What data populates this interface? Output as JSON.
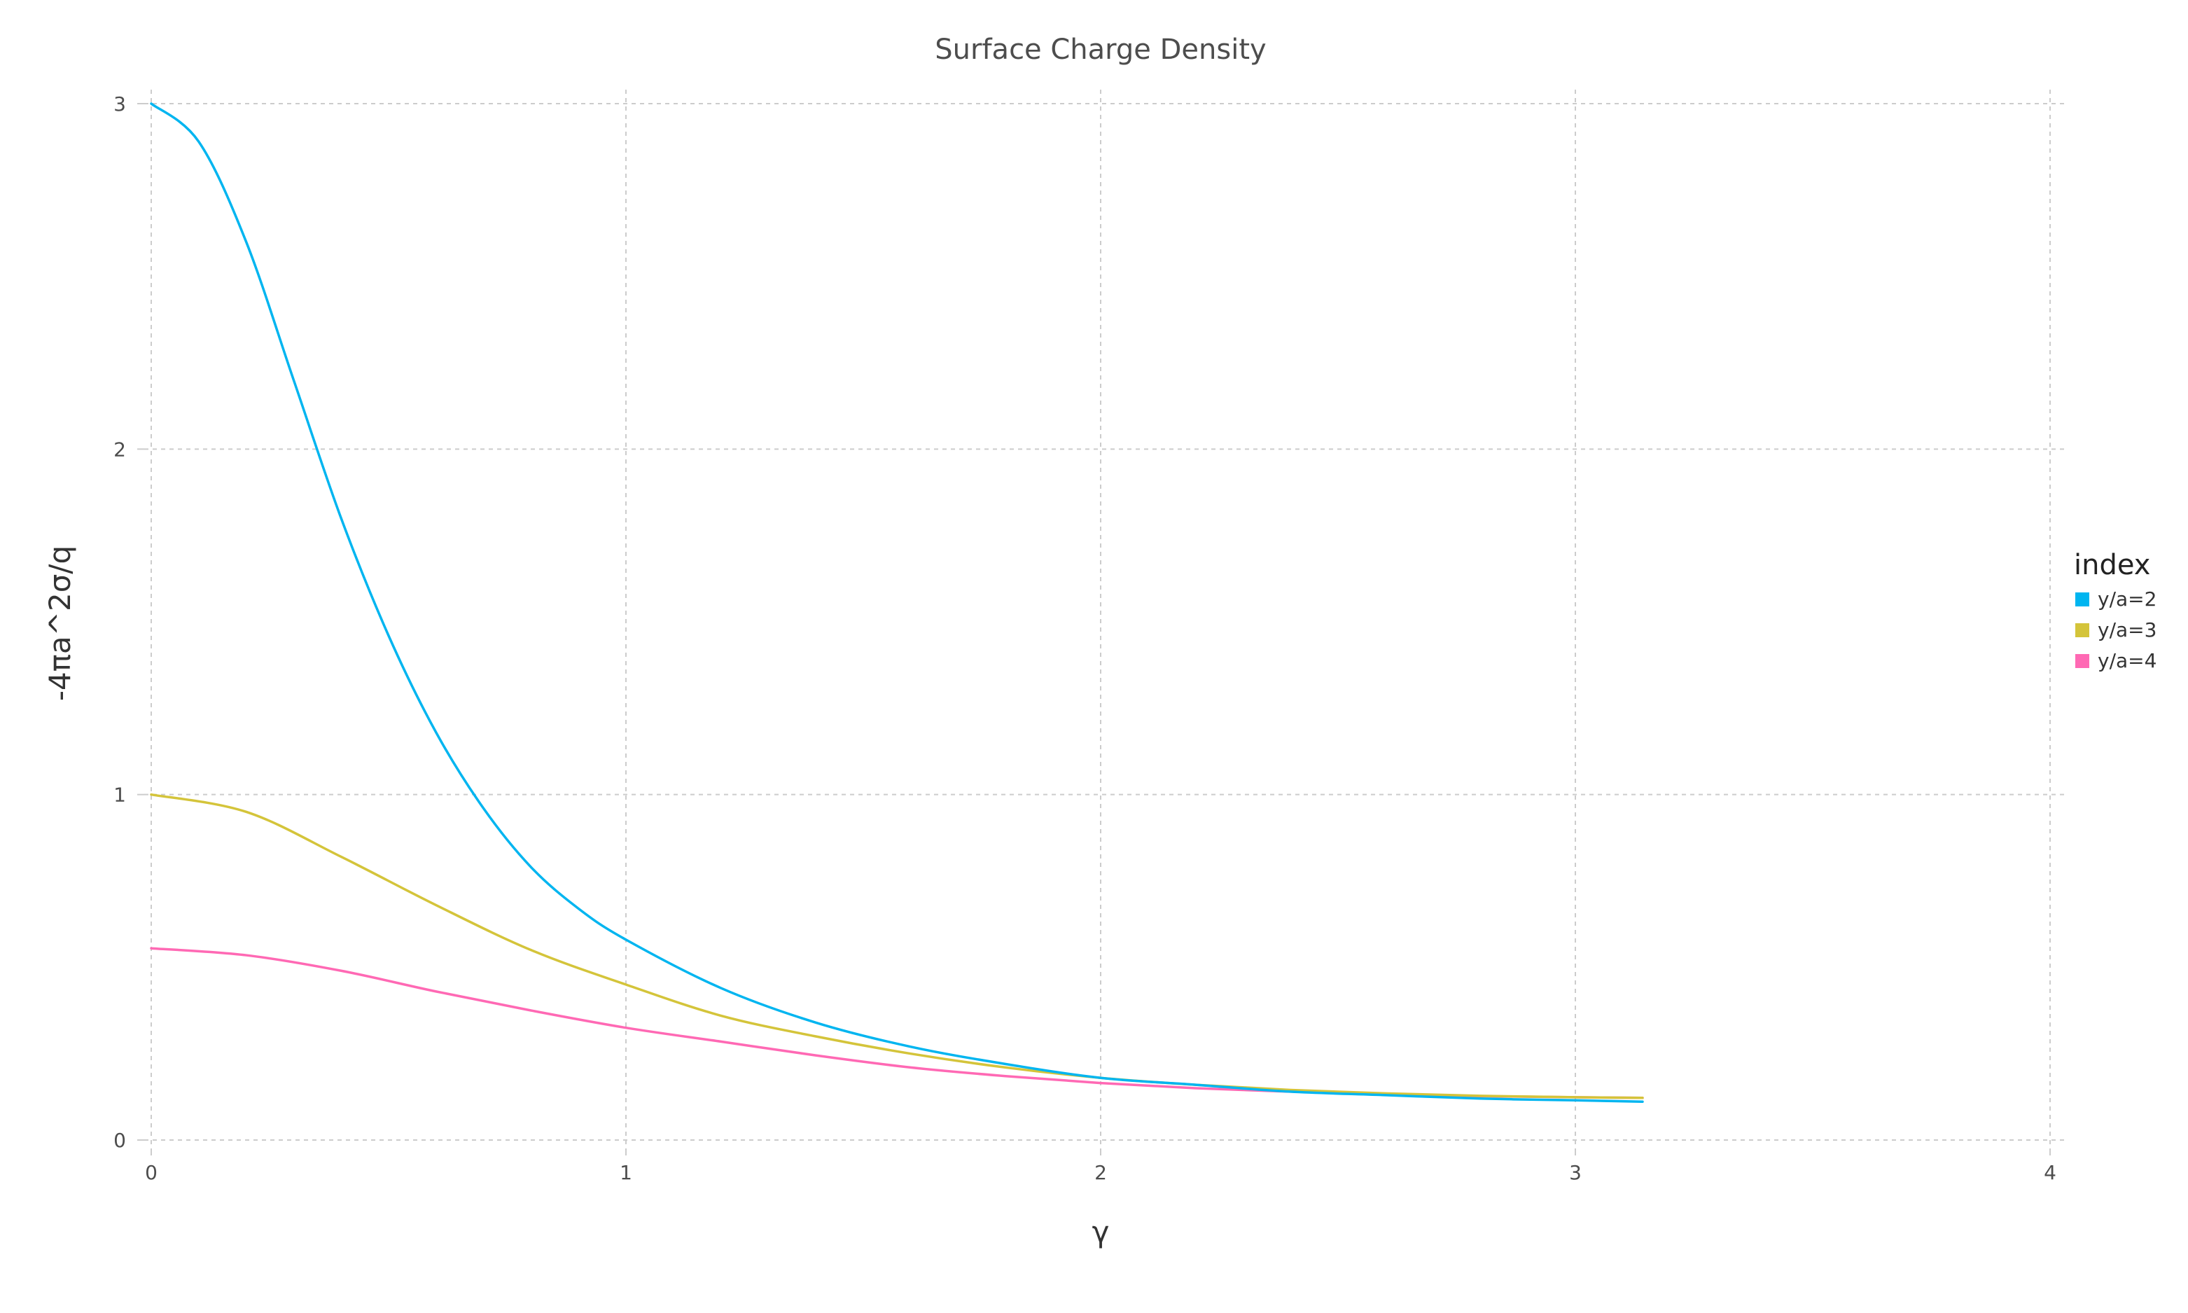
{
  "chart_data": {
    "type": "line",
    "title": "Surface Charge Density",
    "xlabel": "γ",
    "ylabel": "-4πa^2σ/q",
    "xlim": [
      0,
      4
    ],
    "ylim": [
      0,
      3
    ],
    "x_ticks": [
      "0",
      "1",
      "2",
      "3",
      "4"
    ],
    "y_ticks": [
      "0",
      "1",
      "2",
      "3"
    ],
    "grid": true,
    "legend": {
      "title": "index",
      "placement": "right"
    },
    "series": [
      {
        "name": "y/a=2",
        "color": "#00b5f0",
        "x": [
          0,
          0.1,
          0.2,
          0.3,
          0.4,
          0.5,
          0.6,
          0.7,
          0.8,
          0.9,
          1.0,
          1.2,
          1.4,
          1.6,
          1.8,
          2.0,
          2.2,
          2.4,
          2.6,
          2.8,
          3.0,
          3.1416
        ],
        "values": [
          3.0,
          2.89,
          2.6,
          2.2,
          1.8,
          1.46,
          1.18,
          0.96,
          0.79,
          0.67,
          0.58,
          0.44,
          0.34,
          0.27,
          0.22,
          0.18,
          0.16,
          0.14,
          0.13,
          0.12,
          0.115,
          0.111
        ]
      },
      {
        "name": "y/a=3",
        "color": "#d4c43a",
        "x": [
          0,
          0.2,
          0.4,
          0.6,
          0.8,
          1.0,
          1.2,
          1.4,
          1.6,
          1.8,
          2.0,
          2.2,
          2.4,
          2.6,
          2.8,
          3.0,
          3.1416
        ],
        "values": [
          1.0,
          0.95,
          0.82,
          0.68,
          0.55,
          0.45,
          0.36,
          0.3,
          0.25,
          0.21,
          0.18,
          0.16,
          0.145,
          0.135,
          0.128,
          0.124,
          0.122
        ]
      },
      {
        "name": "y/a=4",
        "color": "#ff69b4",
        "x": [
          0,
          0.2,
          0.4,
          0.6,
          0.8,
          1.0,
          1.2,
          1.4,
          1.6,
          1.8,
          2.0,
          2.2,
          2.4,
          2.6,
          2.8,
          3.0,
          3.1416
        ],
        "values": [
          0.555,
          0.535,
          0.49,
          0.43,
          0.375,
          0.325,
          0.285,
          0.245,
          0.21,
          0.185,
          0.165,
          0.15,
          0.14,
          0.132,
          0.127,
          0.124,
          0.122
        ]
      }
    ]
  }
}
